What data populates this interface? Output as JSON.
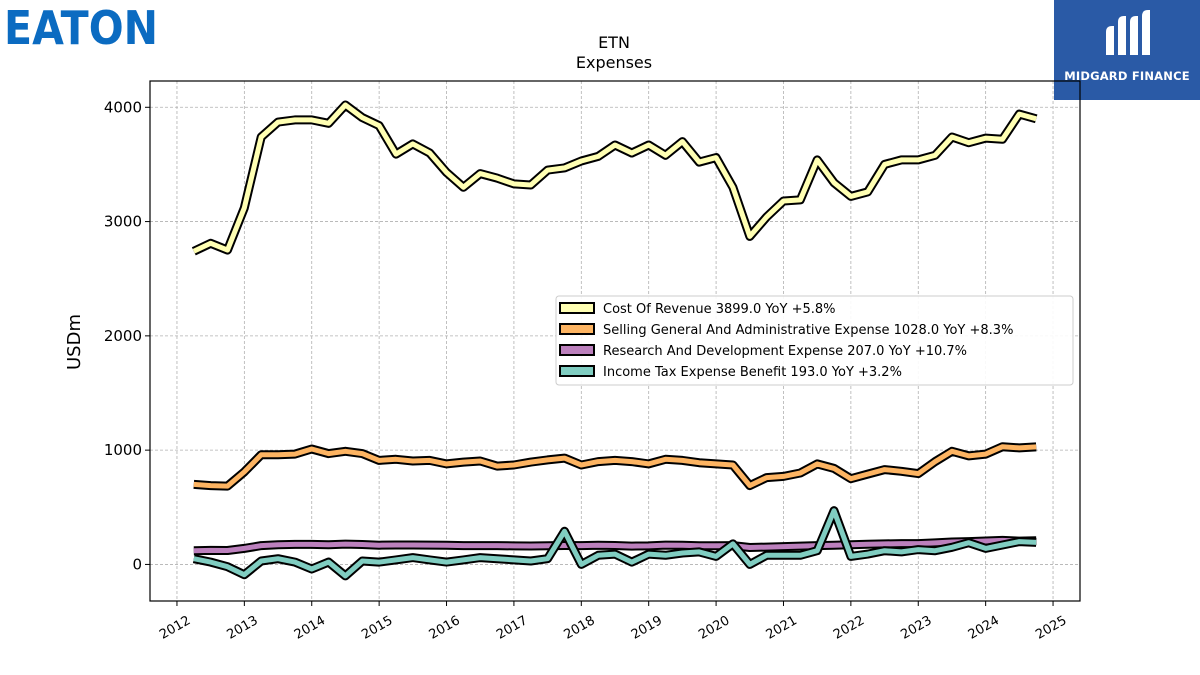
{
  "branding": {
    "company_logo_text": "EATON",
    "company_logo_color": "#0b6bc1",
    "publisher_text": "MIDGARD FINANCE",
    "publisher_bg_color": "#2a5aa6"
  },
  "chart_data": {
    "type": "line",
    "title": "ETN",
    "subtitle": "Expenses",
    "xlabel": "",
    "ylabel": "USDm",
    "xlim": [
      2011.6,
      2025.4
    ],
    "ylim": [
      -320,
      4230
    ],
    "x_ticks": [
      "2012",
      "2013",
      "2014",
      "2015",
      "2016",
      "2017",
      "2018",
      "2019",
      "2020",
      "2021",
      "2022",
      "2023",
      "2024",
      "2025"
    ],
    "y_ticks": [
      0,
      1000,
      2000,
      3000,
      4000
    ],
    "grid": true,
    "legend_position": "right",
    "x": [
      2012.25,
      2012.5,
      2012.75,
      2013.0,
      2013.25,
      2013.5,
      2013.75,
      2014.0,
      2014.25,
      2014.5,
      2014.75,
      2015.0,
      2015.25,
      2015.5,
      2015.75,
      2016.0,
      2016.25,
      2016.5,
      2016.75,
      2017.0,
      2017.25,
      2017.5,
      2017.75,
      2018.0,
      2018.25,
      2018.5,
      2018.75,
      2019.0,
      2019.25,
      2019.5,
      2019.75,
      2020.0,
      2020.25,
      2020.5,
      2020.75,
      2021.0,
      2021.25,
      2021.5,
      2021.75,
      2022.0,
      2022.25,
      2022.5,
      2022.75,
      2023.0,
      2023.25,
      2023.5,
      2023.75,
      2024.0,
      2024.25,
      2024.5,
      2024.75
    ],
    "series": [
      {
        "name": "Cost Of Revenue",
        "legend_label": "Cost Of Revenue  3899.0 YoY +5.8%",
        "color": "#ffffb3",
        "values": [
          2740,
          2810,
          2750,
          3120,
          3740,
          3870,
          3890,
          3890,
          3860,
          4020,
          3910,
          3840,
          3590,
          3680,
          3600,
          3430,
          3300,
          3420,
          3380,
          3330,
          3320,
          3450,
          3470,
          3530,
          3570,
          3670,
          3600,
          3670,
          3580,
          3700,
          3520,
          3560,
          3300,
          2870,
          3040,
          3180,
          3190,
          3540,
          3340,
          3220,
          3260,
          3500,
          3540,
          3540,
          3580,
          3740,
          3690,
          3730,
          3720,
          3940,
          3899
        ]
      },
      {
        "name": "Selling General And Administrative Expense",
        "legend_label": "Selling General And Administrative Expense  1028.0 YoY +8.3%",
        "color": "#fdb462",
        "values": [
          700,
          690,
          685,
          810,
          960,
          960,
          965,
          1010,
          970,
          990,
          970,
          910,
          920,
          905,
          910,
          880,
          895,
          905,
          860,
          870,
          895,
          915,
          930,
          870,
          900,
          910,
          900,
          880,
          920,
          910,
          890,
          880,
          870,
          690,
          760,
          770,
          800,
          880,
          840,
          750,
          790,
          830,
          815,
          795,
          900,
          990,
          950,
          965,
          1030,
          1020,
          1028
        ]
      },
      {
        "name": "Research And Development Expense",
        "legend_label": "Research And Development Expense  207.0 YoY +10.7%",
        "color": "#bc80bd",
        "values": [
          120,
          123,
          122,
          140,
          165,
          172,
          175,
          175,
          172,
          178,
          174,
          168,
          170,
          170,
          169,
          167,
          165,
          165,
          165,
          162,
          161,
          164,
          166,
          165,
          168,
          166,
          160,
          162,
          169,
          167,
          164,
          163,
          165,
          148,
          152,
          156,
          160,
          165,
          168,
          172,
          176,
          180,
          182,
          182,
          188,
          196,
          200,
          205,
          210,
          204,
          207
        ]
      },
      {
        "name": "Income Tax Expense Benefit",
        "legend_label": "Income Tax Expense Benefit  193.0 YoY +3.2%",
        "color": "#80cdc1",
        "values": [
          50,
          20,
          -20,
          -90,
          30,
          50,
          20,
          -40,
          20,
          -100,
          30,
          20,
          40,
          60,
          40,
          20,
          40,
          60,
          50,
          40,
          30,
          50,
          290,
          0,
          80,
          90,
          20,
          90,
          80,
          100,
          110,
          70,
          180,
          0,
          80,
          80,
          80,
          120,
          470,
          70,
          90,
          120,
          110,
          130,
          120,
          150,
          190,
          140,
          170,
          200,
          193
        ]
      }
    ]
  }
}
